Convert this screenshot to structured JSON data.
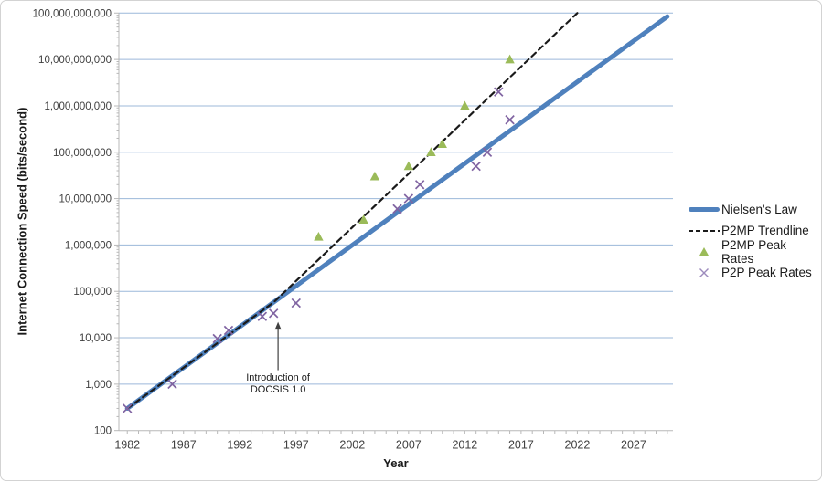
{
  "chart_data": {
    "type": "scatter",
    "title": "",
    "xlabel": "Year",
    "ylabel": "Internet Connection Speed (bits/second)",
    "x_axis": {
      "min": 1981.25,
      "max": 2030.5,
      "tick_labels": [
        "1982",
        "1987",
        "1992",
        "1997",
        "2002",
        "2007",
        "2012",
        "2017",
        "2022",
        "2027"
      ],
      "tick_years": [
        1982,
        1987,
        1992,
        1997,
        2002,
        2007,
        2012,
        2017,
        2022,
        2027
      ],
      "minor_tick_every_years": 1
    },
    "y_axis": {
      "scale": "log",
      "min": 100,
      "max": 100000000000,
      "tick_labels": [
        "100",
        "1,000",
        "10,000",
        "100,000",
        "1,000,000",
        "10,000,000",
        "100,000,000",
        "1,000,000,000",
        "10,000,000,000",
        "100,000,000,000"
      ],
      "tick_values": [
        100,
        1000,
        10000,
        100000,
        1000000,
        10000000,
        100000000,
        1000000000,
        10000000000,
        100000000000
      ],
      "grid": true
    },
    "series": [
      {
        "name": "Nielsen's Law",
        "type": "line",
        "color": "#4f81bd",
        "width": 5,
        "points": [
          [
            1982,
            300
          ],
          [
            2030,
            84000000000
          ]
        ]
      },
      {
        "name": "P2MP Trendline",
        "type": "dashed-line",
        "color": "#1a1a1a",
        "width": 2.2,
        "points": [
          [
            1982,
            300
          ],
          [
            1995,
            58000
          ],
          [
            2022,
            100000000000
          ]
        ]
      },
      {
        "name": "P2MP Peak Rates",
        "type": "triangle",
        "color": "#9bbb59",
        "points": [
          [
            1999,
            1500000
          ],
          [
            2003,
            3500000
          ],
          [
            2004,
            30000000
          ],
          [
            2007,
            50000000
          ],
          [
            2009,
            100000000
          ],
          [
            2010,
            150000000
          ],
          [
            2012,
            1000000000
          ],
          [
            2016,
            10000000000
          ]
        ]
      },
      {
        "name": "P2P Peak Rates",
        "type": "x",
        "color": "#8064a2",
        "points": [
          [
            1982,
            300
          ],
          [
            1986,
            1000
          ],
          [
            1990,
            9600
          ],
          [
            1991,
            14400
          ],
          [
            1994,
            28800
          ],
          [
            1995,
            33600
          ],
          [
            1997,
            56000
          ],
          [
            2006,
            6000000
          ],
          [
            2007,
            10000000
          ],
          [
            2008,
            20000000
          ],
          [
            2013,
            50000000
          ],
          [
            2014,
            100000000
          ],
          [
            2015,
            2000000000
          ],
          [
            2016,
            500000000
          ]
        ]
      }
    ],
    "annotation": {
      "line1": "Introduction of",
      "line2": "DOCSIS 1.0",
      "arrow_year": 1995.4,
      "arrow_from_bps": 2000,
      "arrow_to_bps": 22000
    },
    "legend_position": "right"
  },
  "titles": {
    "y_axis": "Internet Connection Speed (bits/second)",
    "x_axis": "Year"
  },
  "legend": {
    "items": [
      {
        "label": "Nielsen's Law",
        "marker": "blue-line"
      },
      {
        "label": "P2MP Trendline",
        "marker": "black-dashed-line"
      },
      {
        "label": "P2MP Peak Rates",
        "marker": "green-triangle"
      },
      {
        "label": "P2P Peak Rates",
        "marker": "purple-x"
      }
    ]
  },
  "colors": {
    "nielsen_line": "#4f81bd",
    "trendline": "#1a1a1a",
    "p2mp_marker": "#9bbb59",
    "p2p_marker": "#8064a2",
    "gridline": "#9cb8da",
    "axis_line": "#b8b8b8",
    "tick_text": "#3f3f3f"
  }
}
